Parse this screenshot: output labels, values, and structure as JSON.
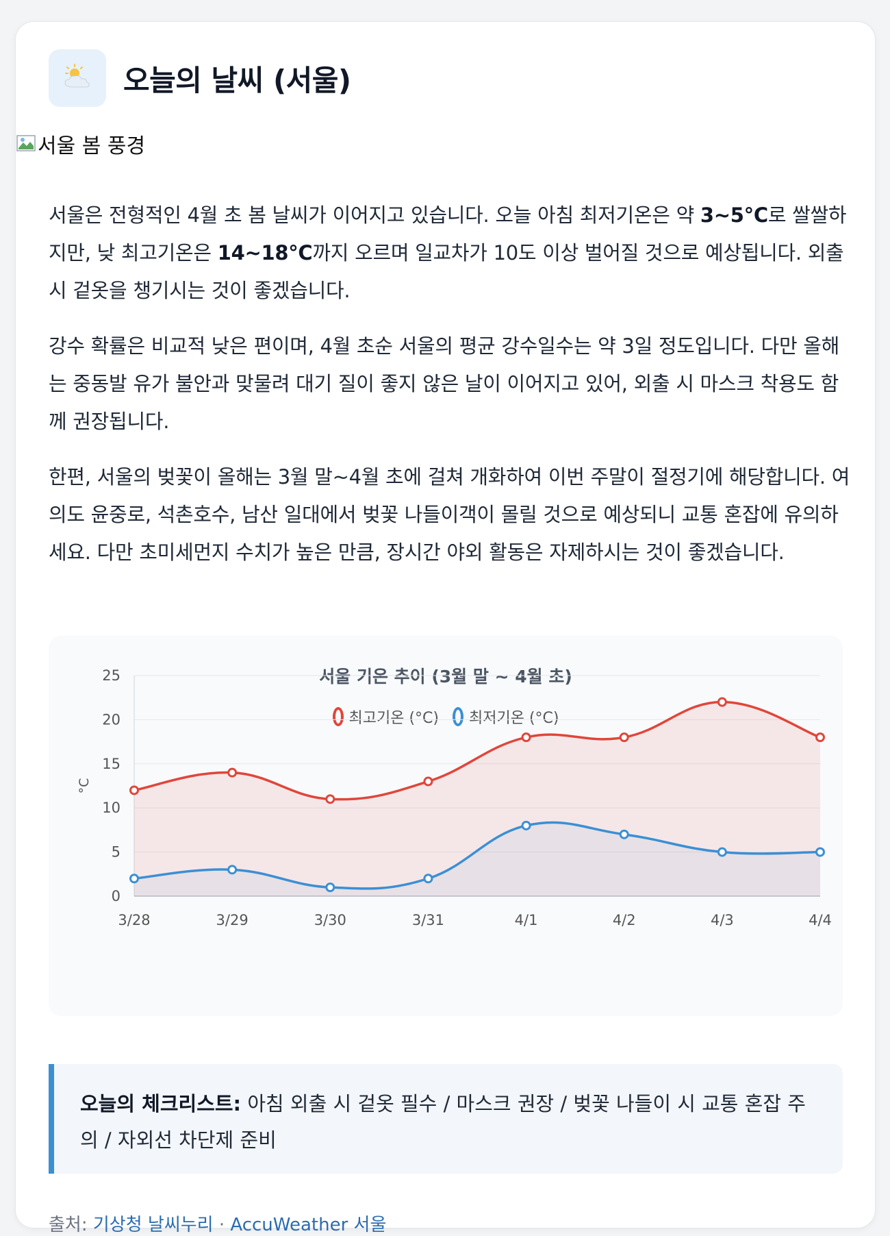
{
  "header": {
    "icon": "sun-behind-cloud-icon",
    "title": "오늘의 날씨 (서울)"
  },
  "image": {
    "alt": "서울 봄 풍경"
  },
  "paragraphs": [
    {
      "segments": [
        {
          "text": "서울은 전형적인 4월 초 봄 날씨가 이어지고 있습니다. 오늘 아침 최저기온은 약 ",
          "bold": false
        },
        {
          "text": "3~5°C",
          "bold": true
        },
        {
          "text": "로 쌀쌀하지만, 낮 최고기온은 ",
          "bold": false
        },
        {
          "text": "14~18°C",
          "bold": true
        },
        {
          "text": "까지 오르며 일교차가 10도 이상 벌어질 것으로 예상됩니다. 외출 시 겉옷을 챙기시는 것이 좋겠습니다.",
          "bold": false
        }
      ]
    },
    {
      "segments": [
        {
          "text": "강수 확률은 비교적 낮은 편이며, 4월 초순 서울의 평균 강수일수는 약 3일 정도입니다. 다만 올해는 중동발 유가 불안과 맞물려 대기 질이 좋지 않은 날이 이어지고 있어, 외출 시 마스크 착용도 함께 권장됩니다.",
          "bold": false
        }
      ]
    },
    {
      "segments": [
        {
          "text": "한편, 서울의 벚꽃이 올해는 3월 말~4월 초에 걸쳐 개화하여 이번 주말이 절정기에 해당합니다. 여의도 윤중로, 석촌호수, 남산 일대에서 벚꽃 나들이객이 몰릴 것으로 예상되니 교통 혼잡에 유의하세요. 다만 초미세먼지 수치가 높은 만큼, 장시간 야외 활동은 자제하시는 것이 좋겠습니다.",
          "bold": false
        }
      ]
    }
  ],
  "chart_data": {
    "type": "line",
    "title": "서울 기온 추이 (3월 말 ~ 4월 초)",
    "categories": [
      "3/28",
      "3/29",
      "3/30",
      "3/31",
      "4/1",
      "4/2",
      "4/3",
      "4/4"
    ],
    "series": [
      {
        "name": "최고기온 (°C)",
        "values": [
          12,
          14,
          11,
          13,
          18,
          18,
          22,
          18
        ],
        "color": "#e0463a",
        "fill": "rgba(224,70,58,0.10)"
      },
      {
        "name": "최저기온 (°C)",
        "values": [
          2,
          3,
          1,
          2,
          8,
          7,
          5,
          5
        ],
        "color": "#3b8fd4",
        "fill": "rgba(59,143,212,0.07)"
      }
    ],
    "xlabel": "",
    "ylabel": "°C",
    "ylim": [
      0,
      25
    ],
    "yticks": [
      "0",
      "5",
      "10",
      "15",
      "20",
      "25"
    ],
    "grid": true,
    "legend": "top-center",
    "area": true,
    "smooth": true
  },
  "checklist": {
    "label": "오늘의 체크리스트:",
    "text": " 아침 외출 시 겉옷 필수 / 마스크 권장 / 벚꽃 나들이 시 교통 혼잡 주의 / 자외선 차단제 준비"
  },
  "source": {
    "prefix": "출처: ",
    "link1": "기상청 날씨누리",
    "separator": " · ",
    "link2": "AccuWeather 서울"
  },
  "colors": {
    "accent": "#3b8fd4",
    "high": "#e0463a",
    "low": "#3b8fd4",
    "link": "#2b6cb0"
  }
}
